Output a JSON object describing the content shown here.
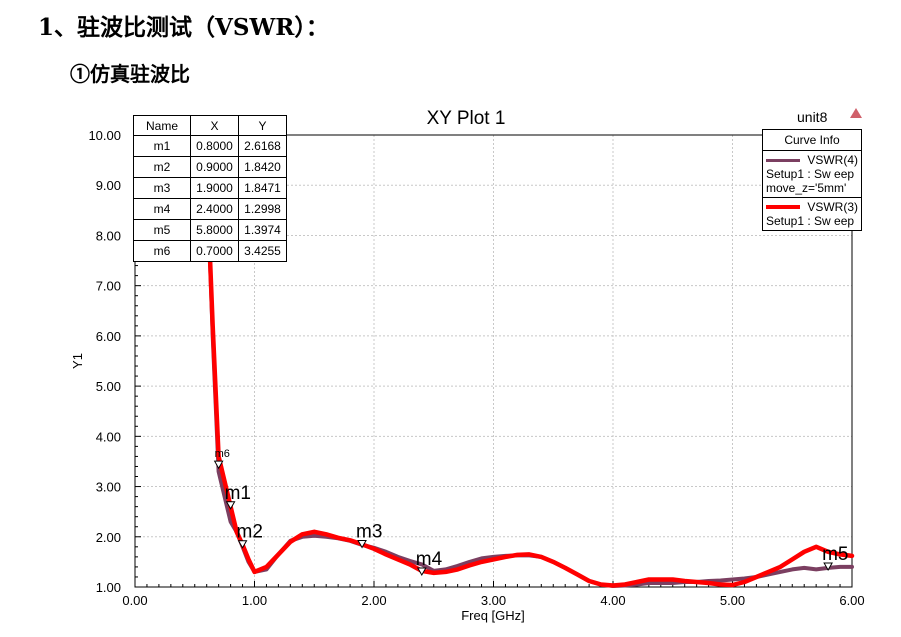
{
  "document": {
    "heading": "1、驻波比测试（VSWR）：",
    "subheading": "①仿真驻波比"
  },
  "plot_header": {
    "unit_label": "unit8"
  },
  "marker_table": {
    "headers": [
      "Name",
      "X",
      "Y"
    ],
    "rows": [
      [
        "m1",
        "0.8000",
        "2.6168"
      ],
      [
        "m2",
        "0.9000",
        "1.8420"
      ],
      [
        "m3",
        "1.9000",
        "1.8471"
      ],
      [
        "m4",
        "2.4000",
        "1.2998"
      ],
      [
        "m5",
        "5.8000",
        "1.3974"
      ],
      [
        "m6",
        "0.7000",
        "3.4255"
      ]
    ]
  },
  "curve_info": {
    "title": "Curve Info",
    "entries": [
      {
        "name": "VSWR(4)",
        "lines": [
          "Setup1 : Sw eep",
          "move_z='5mm'"
        ],
        "color": "#7b3f61"
      },
      {
        "name": "VSWR(3)",
        "lines": [
          "Setup1 : Sw eep"
        ],
        "color": "#ff0000"
      }
    ]
  },
  "chart_data": {
    "type": "line",
    "title": "XY Plot 1",
    "xlabel": "Freq [GHz]",
    "ylabel": "Y1",
    "xlim": [
      0,
      6
    ],
    "ylim": [
      1,
      10
    ],
    "x_ticks": [
      "0.00",
      "1.00",
      "2.00",
      "3.00",
      "4.00",
      "5.00",
      "6.00"
    ],
    "y_ticks": [
      "1.00",
      "2.00",
      "3.00",
      "4.00",
      "5.00",
      "6.00",
      "7.00",
      "8.00",
      "9.00",
      "10.00"
    ],
    "grid": true,
    "series": [
      {
        "name": "VSWR(4)",
        "color": "#7b3f61",
        "x": [
          0.6,
          0.62,
          0.65,
          0.7,
          0.75,
          0.8,
          0.85,
          0.9,
          0.95,
          1.0,
          1.1,
          1.2,
          1.3,
          1.4,
          1.5,
          1.6,
          1.7,
          1.8,
          1.9,
          2.0,
          2.1,
          2.2,
          2.3,
          2.4,
          2.5,
          2.6,
          2.7,
          2.8,
          2.9,
          3.0,
          3.1,
          3.2,
          3.3,
          3.4,
          3.5,
          3.6,
          3.7,
          3.8,
          3.9,
          4.0,
          4.1,
          4.2,
          4.3,
          4.4,
          4.5,
          4.6,
          4.7,
          4.8,
          4.9,
          5.0,
          5.1,
          5.2,
          5.3,
          5.4,
          5.5,
          5.6,
          5.7,
          5.8,
          5.9,
          6.0
        ],
        "values": [
          9.9,
          8.0,
          6.0,
          3.3,
          2.8,
          2.3,
          2.1,
          1.8,
          1.5,
          1.3,
          1.35,
          1.65,
          1.92,
          2.0,
          2.02,
          2.0,
          1.97,
          1.92,
          1.84,
          1.78,
          1.7,
          1.6,
          1.52,
          1.45,
          1.32,
          1.35,
          1.42,
          1.5,
          1.57,
          1.6,
          1.62,
          1.63,
          1.63,
          1.6,
          1.5,
          1.38,
          1.25,
          1.12,
          1.05,
          1.02,
          1.03,
          1.05,
          1.08,
          1.08,
          1.08,
          1.1,
          1.1,
          1.12,
          1.13,
          1.15,
          1.17,
          1.2,
          1.25,
          1.3,
          1.35,
          1.38,
          1.35,
          1.38,
          1.4,
          1.4
        ]
      },
      {
        "name": "VSWR(3)",
        "color": "#ff0000",
        "x": [
          0.6,
          0.62,
          0.65,
          0.7,
          0.75,
          0.8,
          0.85,
          0.9,
          0.95,
          1.0,
          1.1,
          1.2,
          1.3,
          1.4,
          1.5,
          1.6,
          1.7,
          1.8,
          1.9,
          2.0,
          2.1,
          2.2,
          2.3,
          2.4,
          2.5,
          2.6,
          2.7,
          2.8,
          2.9,
          3.0,
          3.1,
          3.2,
          3.3,
          3.4,
          3.5,
          3.6,
          3.7,
          3.8,
          3.9,
          4.0,
          4.1,
          4.2,
          4.3,
          4.4,
          4.5,
          4.6,
          4.7,
          4.8,
          4.9,
          5.0,
          5.1,
          5.2,
          5.3,
          5.4,
          5.5,
          5.6,
          5.7,
          5.8,
          5.9,
          6.0
        ],
        "values": [
          9.9,
          8.0,
          6.2,
          3.6,
          3.1,
          2.6,
          2.1,
          1.84,
          1.55,
          1.3,
          1.4,
          1.65,
          1.9,
          2.05,
          2.1,
          2.05,
          1.98,
          1.93,
          1.85,
          1.76,
          1.65,
          1.55,
          1.45,
          1.32,
          1.28,
          1.3,
          1.35,
          1.43,
          1.5,
          1.55,
          1.6,
          1.64,
          1.65,
          1.6,
          1.5,
          1.38,
          1.25,
          1.12,
          1.05,
          1.03,
          1.05,
          1.1,
          1.15,
          1.15,
          1.15,
          1.12,
          1.1,
          1.08,
          1.05,
          1.04,
          1.1,
          1.2,
          1.3,
          1.4,
          1.55,
          1.7,
          1.8,
          1.7,
          1.65,
          1.62
        ]
      }
    ],
    "markers": [
      {
        "name": "m1",
        "x": 0.8,
        "y": 2.6168
      },
      {
        "name": "m2",
        "x": 0.9,
        "y": 1.842
      },
      {
        "name": "m3",
        "x": 1.9,
        "y": 1.8471
      },
      {
        "name": "m4",
        "x": 2.4,
        "y": 1.2998
      },
      {
        "name": "m5",
        "x": 5.8,
        "y": 1.3974
      },
      {
        "name": "m6",
        "x": 0.7,
        "y": 3.4255
      }
    ]
  }
}
